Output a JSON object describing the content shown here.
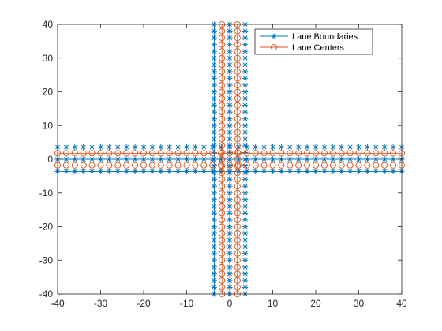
{
  "chart_data": {
    "type": "line",
    "title": "",
    "xlabel": "",
    "ylabel": "",
    "xlim": [
      -40,
      40
    ],
    "ylim": [
      -40,
      40
    ],
    "xticks": [
      -40,
      -30,
      -20,
      -10,
      0,
      10,
      20,
      30,
      40
    ],
    "yticks": [
      -40,
      -30,
      -20,
      -10,
      0,
      10,
      20,
      30,
      40
    ],
    "grid": false,
    "legend_position": "top-right",
    "marker_spacing": 2,
    "series": [
      {
        "name": "Lane Boundaries",
        "color": "#0072BD",
        "marker": "asterisk",
        "lines": [
          {
            "axis": "horizontal",
            "y": 3.6,
            "range": [
              -40,
              40
            ]
          },
          {
            "axis": "horizontal",
            "y": 0,
            "range": [
              -40,
              40
            ]
          },
          {
            "axis": "horizontal",
            "y": -3.6,
            "range": [
              -40,
              40
            ]
          },
          {
            "axis": "vertical",
            "x": -3.6,
            "range": [
              -40,
              40
            ]
          },
          {
            "axis": "vertical",
            "x": 0,
            "range": [
              -40,
              40
            ]
          },
          {
            "axis": "vertical",
            "x": 3.6,
            "range": [
              -40,
              40
            ]
          }
        ]
      },
      {
        "name": "Lane Centers",
        "color": "#D95319",
        "marker": "circle",
        "lines": [
          {
            "axis": "horizontal",
            "y": 1.8,
            "range": [
              -40,
              40
            ]
          },
          {
            "axis": "horizontal",
            "y": -1.8,
            "range": [
              -40,
              40
            ]
          },
          {
            "axis": "vertical",
            "x": -1.8,
            "range": [
              -40,
              40
            ]
          },
          {
            "axis": "vertical",
            "x": 1.8,
            "range": [
              -40,
              40
            ]
          }
        ]
      }
    ]
  }
}
